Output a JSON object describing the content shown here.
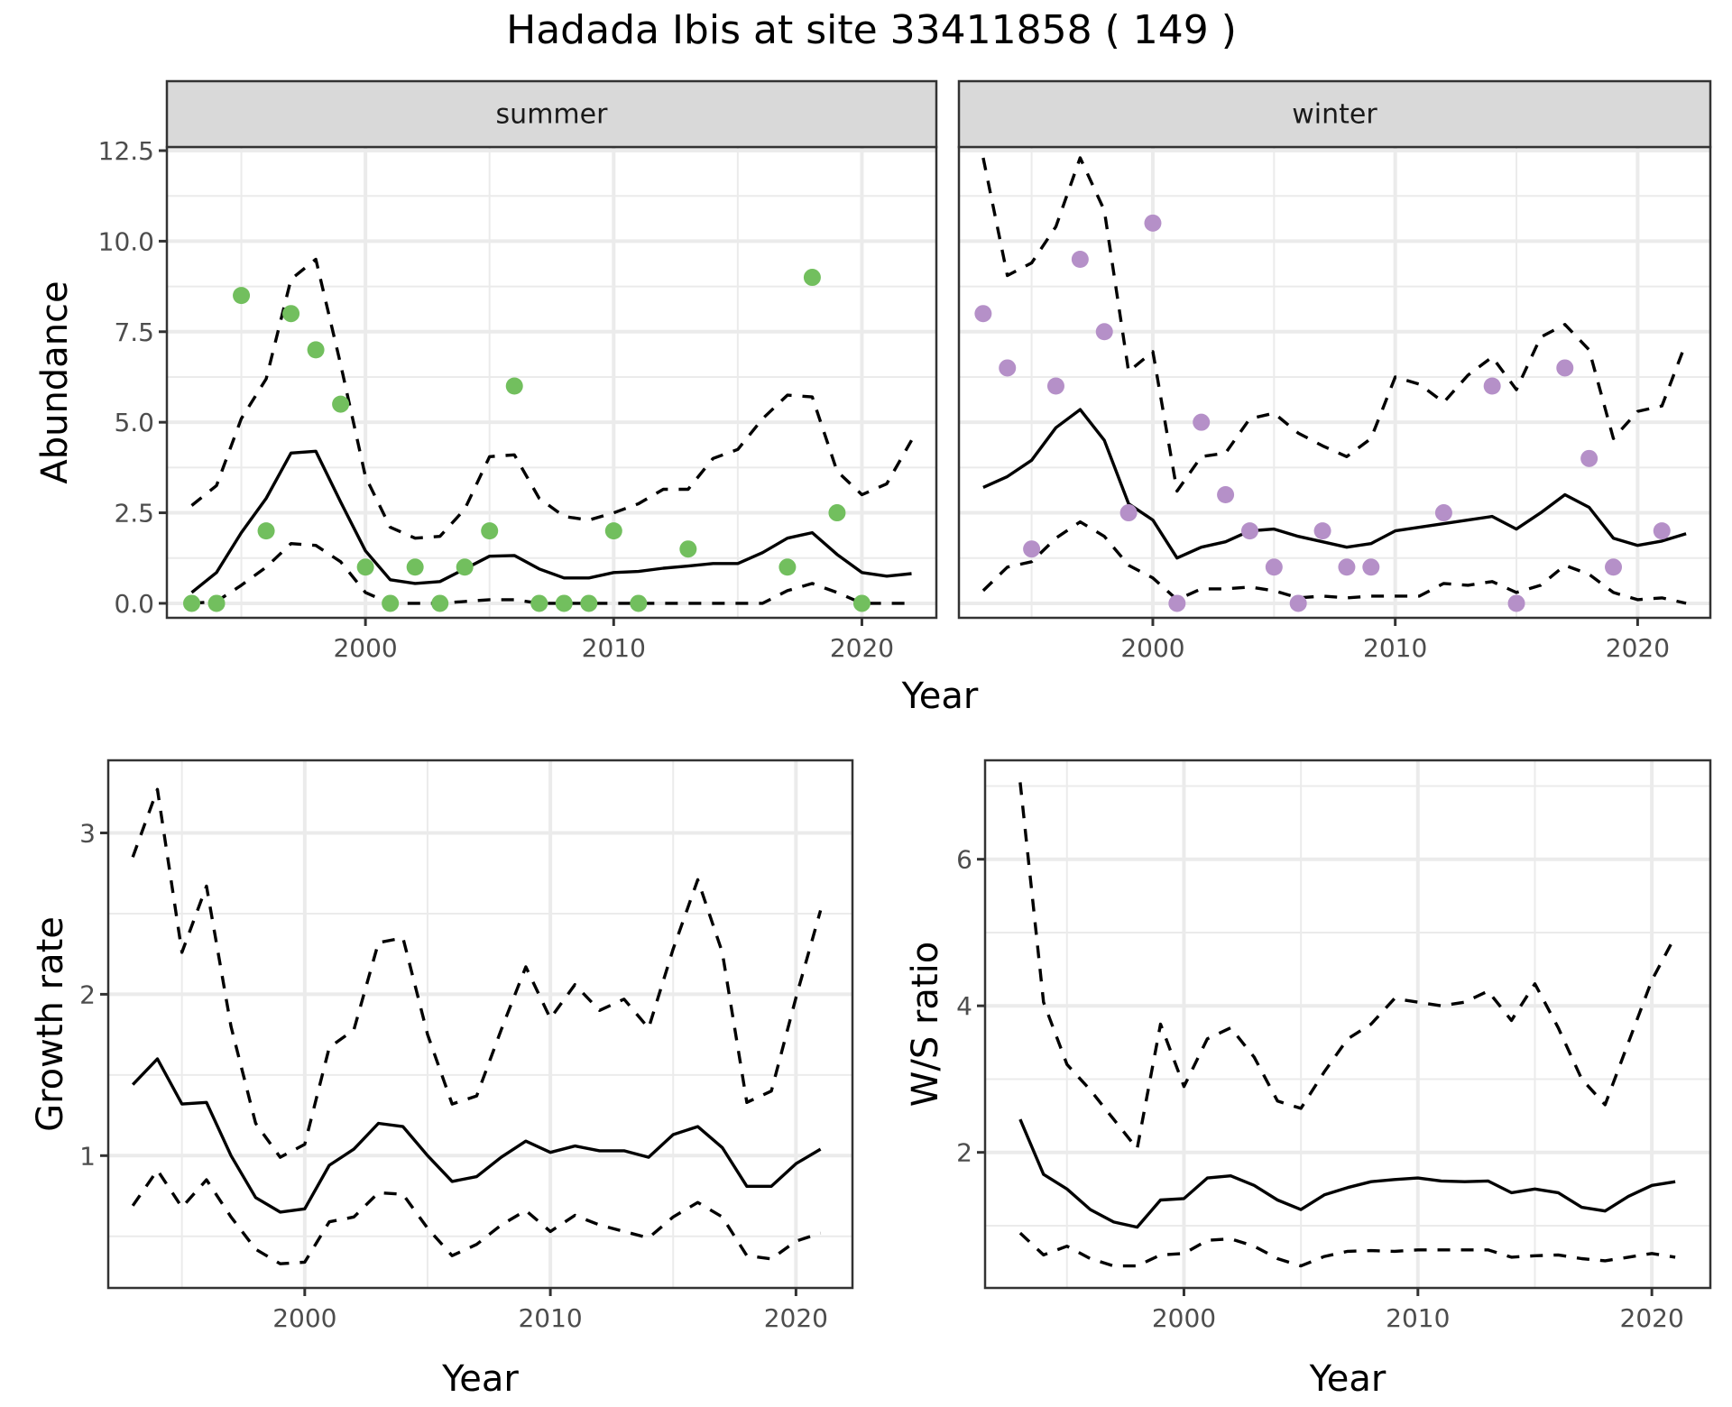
{
  "chart_data": {
    "title": "Hadada Ibis at site 33411858 ( 149 )",
    "panels": [
      {
        "id": "summer",
        "type": "line",
        "strip": "summer",
        "xlabel": "",
        "ylabel": "Abundance",
        "xlim": [
          1992,
          2023
        ],
        "ylim": [
          -0.4,
          12.6
        ],
        "xticks": [
          2000,
          2010,
          2020
        ],
        "yticks": [
          0,
          2.5,
          5,
          7.5,
          10,
          12.5
        ],
        "ytick_labels": [
          "0.0",
          "2.5",
          "5.0",
          "7.5",
          "10.0",
          "12.5"
        ],
        "grid": true,
        "point_color": "#72bf5e",
        "years": [
          1993,
          1994,
          1995,
          1996,
          1997,
          1998,
          1999,
          2000,
          2001,
          2002,
          2003,
          2004,
          2005,
          2006,
          2007,
          2008,
          2009,
          2010,
          2011,
          2012,
          2013,
          2014,
          2015,
          2016,
          2017,
          2018,
          2019,
          2020,
          2021,
          2022
        ],
        "series": [
          {
            "name": "mean",
            "style": "solid",
            "values": [
              0.3,
              0.85,
              1.95,
              2.9,
              4.15,
              4.2,
              2.8,
              1.45,
              0.65,
              0.55,
              0.6,
              0.95,
              1.3,
              1.32,
              0.95,
              0.7,
              0.7,
              0.85,
              0.88,
              0.97,
              1.03,
              1.1,
              1.1,
              1.4,
              1.8,
              1.95,
              1.35,
              0.85,
              0.75,
              0.82
            ]
          },
          {
            "name": "upper",
            "style": "dashed",
            "values": [
              2.7,
              3.25,
              5.1,
              6.2,
              8.95,
              9.5,
              6.6,
              3.5,
              2.1,
              1.8,
              1.85,
              2.6,
              4.05,
              4.1,
              2.9,
              2.4,
              2.3,
              2.5,
              2.75,
              3.15,
              3.15,
              4.0,
              4.25,
              5.1,
              5.75,
              5.7,
              3.65,
              3.0,
              3.3,
              4.5
            ]
          },
          {
            "name": "lower",
            "style": "dashed",
            "values": [
              0,
              0.05,
              0.5,
              1.0,
              1.65,
              1.6,
              1.15,
              0.3,
              0,
              0,
              0,
              0.05,
              0.1,
              0.1,
              0,
              0,
              0,
              0,
              0,
              0,
              0,
              0,
              0,
              0,
              0.35,
              0.55,
              0.3,
              0,
              0,
              0
            ]
          }
        ],
        "points": [
          {
            "x": 1993,
            "y": 0
          },
          {
            "x": 1994,
            "y": 0
          },
          {
            "x": 1995,
            "y": 8.5
          },
          {
            "x": 1996,
            "y": 2
          },
          {
            "x": 1997,
            "y": 8
          },
          {
            "x": 1998,
            "y": 7
          },
          {
            "x": 1999,
            "y": 5.5
          },
          {
            "x": 2000,
            "y": 1
          },
          {
            "x": 2001,
            "y": 0
          },
          {
            "x": 2002,
            "y": 1
          },
          {
            "x": 2003,
            "y": 0
          },
          {
            "x": 2004,
            "y": 1
          },
          {
            "x": 2005,
            "y": 2
          },
          {
            "x": 2006,
            "y": 6
          },
          {
            "x": 2007,
            "y": 0
          },
          {
            "x": 2008,
            "y": 0
          },
          {
            "x": 2009,
            "y": 0
          },
          {
            "x": 2010,
            "y": 2
          },
          {
            "x": 2011,
            "y": 0
          },
          {
            "x": 2013,
            "y": 1.5
          },
          {
            "x": 2017,
            "y": 1
          },
          {
            "x": 2018,
            "y": 9
          },
          {
            "x": 2019,
            "y": 2.5
          },
          {
            "x": 2020,
            "y": 0
          }
        ]
      },
      {
        "id": "winter",
        "type": "line",
        "strip": "winter",
        "xlabel": "",
        "ylabel": "",
        "xlim": [
          1992,
          2023
        ],
        "ylim": [
          -0.4,
          12.6
        ],
        "xticks": [
          2000,
          2010,
          2020
        ],
        "yticks": [
          0,
          2.5,
          5,
          7.5,
          10,
          12.5
        ],
        "ytick_labels": [],
        "grid": true,
        "point_color": "#b590c8",
        "years": [
          1993,
          1994,
          1995,
          1996,
          1997,
          1998,
          1999,
          2000,
          2001,
          2002,
          2003,
          2004,
          2005,
          2006,
          2007,
          2008,
          2009,
          2010,
          2011,
          2012,
          2013,
          2014,
          2015,
          2016,
          2017,
          2018,
          2019,
          2020,
          2021,
          2022
        ],
        "series": [
          {
            "name": "mean",
            "style": "solid",
            "values": [
              3.2,
              3.5,
              3.95,
              4.85,
              5.35,
              4.5,
              2.75,
              2.3,
              1.25,
              1.55,
              1.7,
              2.0,
              2.05,
              1.85,
              1.7,
              1.55,
              1.65,
              2.0,
              2.1,
              2.2,
              2.3,
              2.4,
              2.05,
              2.5,
              3.0,
              2.65,
              1.8,
              1.6,
              1.72,
              1.92
            ]
          },
          {
            "name": "upper",
            "style": "dashed",
            "values": [
              12.3,
              9.05,
              9.4,
              10.4,
              12.3,
              10.85,
              6.4,
              6.95,
              3.1,
              4.05,
              4.15,
              5.1,
              5.25,
              4.7,
              4.35,
              4.05,
              4.55,
              6.25,
              6.05,
              5.55,
              6.3,
              6.8,
              5.9,
              7.35,
              7.7,
              7.0,
              4.55,
              5.3,
              5.45,
              7.2
            ]
          },
          {
            "name": "lower",
            "style": "dashed",
            "values": [
              0.35,
              1.0,
              1.15,
              1.8,
              2.25,
              1.85,
              1.05,
              0.7,
              0.1,
              0.4,
              0.4,
              0.45,
              0.35,
              0.15,
              0.2,
              0.15,
              0.2,
              0.2,
              0.2,
              0.55,
              0.5,
              0.6,
              0.3,
              0.5,
              1.05,
              0.8,
              0.3,
              0.1,
              0.15,
              0.0
            ]
          }
        ],
        "points": [
          {
            "x": 1993,
            "y": 8
          },
          {
            "x": 1994,
            "y": 6.5
          },
          {
            "x": 1995,
            "y": 1.5
          },
          {
            "x": 1996,
            "y": 6
          },
          {
            "x": 1997,
            "y": 9.5
          },
          {
            "x": 1998,
            "y": 7.5
          },
          {
            "x": 1999,
            "y": 2.5
          },
          {
            "x": 2000,
            "y": 10.5
          },
          {
            "x": 2001,
            "y": 0
          },
          {
            "x": 2002,
            "y": 5
          },
          {
            "x": 2003,
            "y": 3
          },
          {
            "x": 2004,
            "y": 2
          },
          {
            "x": 2005,
            "y": 1
          },
          {
            "x": 2006,
            "y": 0
          },
          {
            "x": 2007,
            "y": 2
          },
          {
            "x": 2008,
            "y": 1
          },
          {
            "x": 2009,
            "y": 1
          },
          {
            "x": 2012,
            "y": 2.5
          },
          {
            "x": 2014,
            "y": 6
          },
          {
            "x": 2015,
            "y": 0
          },
          {
            "x": 2017,
            "y": 6.5
          },
          {
            "x": 2018,
            "y": 4
          },
          {
            "x": 2019,
            "y": 1
          },
          {
            "x": 2021,
            "y": 2
          }
        ]
      },
      {
        "id": "growth",
        "type": "line",
        "xlabel": "Year",
        "ylabel": "Growth rate",
        "xlim": [
          1992,
          2022.3
        ],
        "ylim": [
          0.18,
          3.45
        ],
        "xticks": [
          2000,
          2010,
          2020
        ],
        "yticks": [
          1,
          2,
          3
        ],
        "ytick_labels": [
          "1",
          "2",
          "3"
        ],
        "minor_yticks": [
          0.5,
          1.5,
          2.5
        ],
        "grid": true,
        "years": [
          1993,
          1994,
          1995,
          1996,
          1997,
          1998,
          1999,
          2000,
          2001,
          2002,
          2003,
          2004,
          2005,
          2006,
          2007,
          2008,
          2009,
          2010,
          2011,
          2012,
          2013,
          2014,
          2015,
          2016,
          2017,
          2018,
          2019,
          2020,
          2021
        ],
        "series": [
          {
            "name": "mean",
            "style": "solid",
            "values": [
              1.44,
              1.6,
              1.32,
              1.33,
              1.0,
              0.74,
              0.65,
              0.67,
              0.94,
              1.04,
              1.2,
              1.18,
              1.0,
              0.84,
              0.87,
              0.99,
              1.09,
              1.02,
              1.06,
              1.03,
              1.03,
              0.99,
              1.13,
              1.18,
              1.05,
              0.81,
              0.81,
              0.95,
              1.04
            ]
          },
          {
            "name": "upper",
            "style": "dashed",
            "values": [
              2.85,
              3.27,
              2.26,
              2.67,
              1.8,
              1.2,
              0.99,
              1.07,
              1.67,
              1.78,
              2.32,
              2.35,
              1.75,
              1.32,
              1.37,
              1.78,
              2.17,
              1.85,
              2.06,
              1.9,
              1.97,
              1.79,
              2.28,
              2.71,
              2.26,
              1.33,
              1.4,
              1.98,
              2.52
            ]
          },
          {
            "name": "lower",
            "style": "dashed",
            "values": [
              0.69,
              0.91,
              0.68,
              0.85,
              0.62,
              0.42,
              0.33,
              0.34,
              0.59,
              0.62,
              0.77,
              0.76,
              0.55,
              0.38,
              0.45,
              0.57,
              0.66,
              0.53,
              0.63,
              0.57,
              0.53,
              0.49,
              0.62,
              0.71,
              0.62,
              0.38,
              0.36,
              0.47,
              0.52
            ]
          }
        ]
      },
      {
        "id": "ws_ratio",
        "type": "line",
        "xlabel": "Year",
        "ylabel": "W/S ratio",
        "xlim": [
          1991.5,
          2022.5
        ],
        "ylim": [
          0.15,
          7.35
        ],
        "xticks": [
          2000,
          2010,
          2020
        ],
        "yticks": [
          2,
          4,
          6
        ],
        "ytick_labels": [
          "2",
          "4",
          "6"
        ],
        "minor_yticks": [
          1,
          3,
          5,
          7
        ],
        "grid": true,
        "years": [
          1993,
          1994,
          1995,
          1996,
          1997,
          1998,
          1999,
          2000,
          2001,
          2002,
          2003,
          2004,
          2005,
          2006,
          2007,
          2008,
          2009,
          2010,
          2011,
          2012,
          2013,
          2014,
          2015,
          2016,
          2017,
          2018,
          2019,
          2020,
          2021
        ],
        "series": [
          {
            "name": "mean",
            "style": "solid",
            "values": [
              2.45,
              1.7,
              1.5,
              1.22,
              1.05,
              0.98,
              1.35,
              1.37,
              1.65,
              1.68,
              1.55,
              1.35,
              1.22,
              1.42,
              1.52,
              1.6,
              1.63,
              1.65,
              1.61,
              1.6,
              1.61,
              1.45,
              1.5,
              1.45,
              1.25,
              1.2,
              1.4,
              1.55,
              1.6
            ]
          },
          {
            "name": "upper",
            "style": "dashed",
            "values": [
              7.05,
              4.05,
              3.2,
              2.85,
              2.45,
              2.05,
              3.75,
              2.9,
              3.55,
              3.7,
              3.3,
              2.7,
              2.6,
              3.1,
              3.55,
              3.75,
              4.1,
              4.05,
              4.0,
              4.05,
              4.2,
              3.8,
              4.3,
              3.7,
              3.0,
              2.65,
              3.5,
              4.35,
              4.95
            ]
          },
          {
            "name": "lower",
            "style": "dashed",
            "values": [
              0.9,
              0.6,
              0.72,
              0.55,
              0.45,
              0.45,
              0.6,
              0.62,
              0.8,
              0.82,
              0.72,
              0.55,
              0.45,
              0.58,
              0.65,
              0.66,
              0.65,
              0.67,
              0.67,
              0.67,
              0.67,
              0.57,
              0.59,
              0.6,
              0.55,
              0.52,
              0.57,
              0.62,
              0.57
            ]
          }
        ]
      }
    ],
    "shared_xlabel_top": "Year"
  }
}
